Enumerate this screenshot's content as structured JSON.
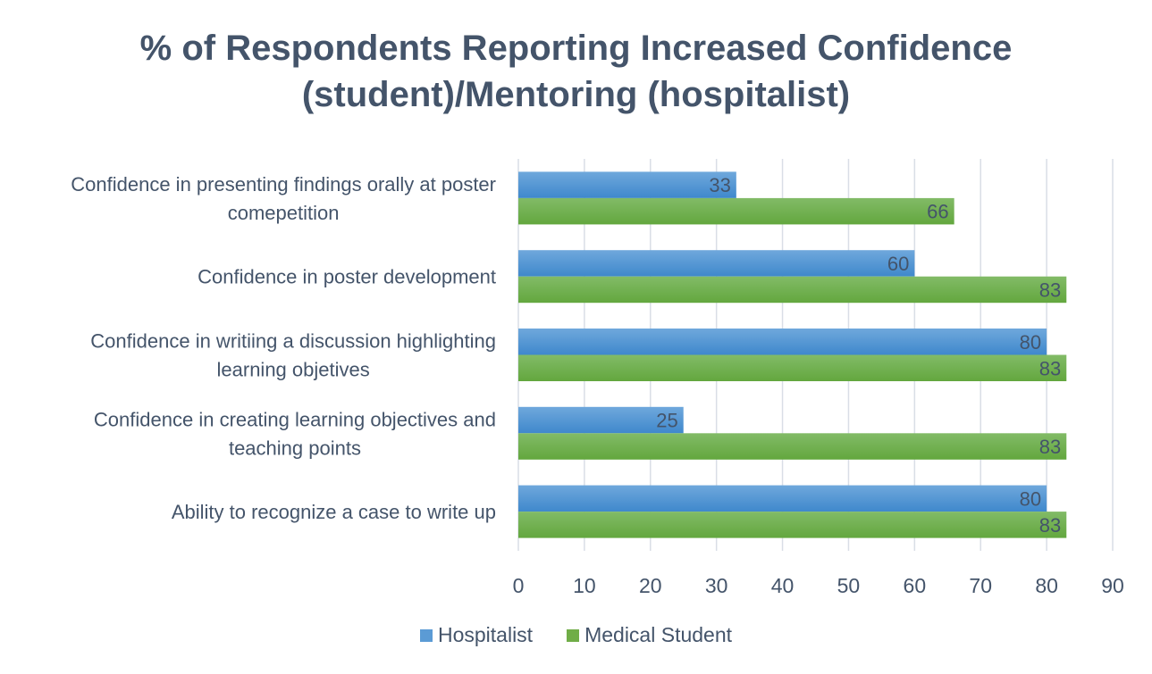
{
  "chart_data": {
    "type": "bar",
    "orientation": "horizontal",
    "title": "% of Respondents Reporting Increased Confidence (student)/Mentoring (hospitalist)",
    "title_lines": [
      "% of Respondents Reporting Increased Confidence",
      "(student)/Mentoring (hospitalist)"
    ],
    "categories": [
      [
        "Confidence in presenting findings orally at poster",
        "comepetition"
      ],
      [
        "Confidence in poster development"
      ],
      [
        "Confidence in writiing a discussion highlighting",
        "learning objetives"
      ],
      [
        "Confidence in creating learning objectives and",
        "teaching points"
      ],
      [
        "Ability to recognize a case to write up"
      ]
    ],
    "series": [
      {
        "name": "Hospitalist",
        "color": "#5b9bd5",
        "values": [
          33,
          60,
          80,
          25,
          80
        ]
      },
      {
        "name": "Medical Student",
        "color": "#70ad47",
        "values": [
          66,
          83,
          83,
          83,
          83
        ]
      }
    ],
    "xlabel": "",
    "ylabel": "",
    "xlim": [
      0,
      90
    ],
    "xticks": [
      0,
      10,
      20,
      30,
      40,
      50,
      60,
      70,
      80,
      90
    ],
    "grid": true,
    "legend_position": "bottom",
    "data_labels": true
  }
}
